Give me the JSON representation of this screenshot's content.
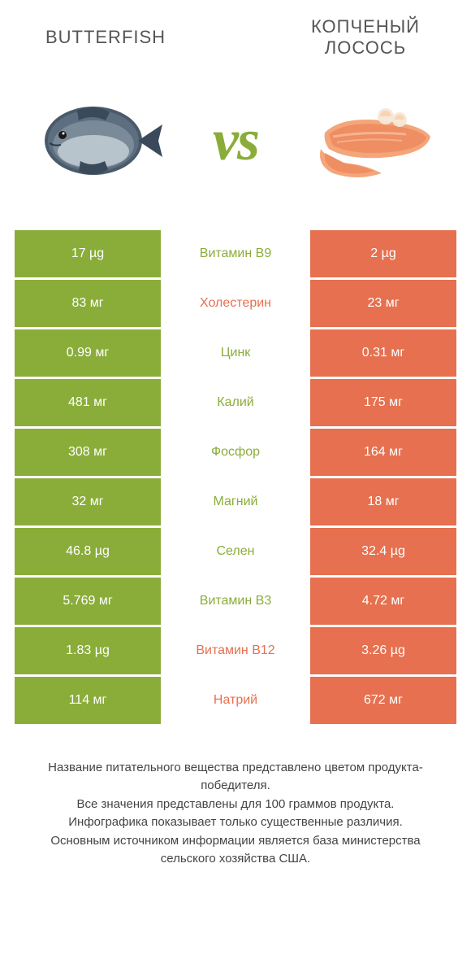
{
  "colors": {
    "green": "#8aad3a",
    "orange": "#e6704f",
    "vs": "#8aad3a",
    "title": "#555555",
    "footnote": "#444444",
    "bg": "#ffffff"
  },
  "header": {
    "left": "BUTTERFISH",
    "right": "КОПЧЕНЫЙ ЛОСОСЬ",
    "vs": "vs"
  },
  "rows": [
    {
      "label": "Витамин B9",
      "left": "17 µg",
      "right": "2 µg",
      "winner": "left"
    },
    {
      "label": "Холестерин",
      "left": "83 мг",
      "right": "23 мг",
      "winner": "right"
    },
    {
      "label": "Цинк",
      "left": "0.99 мг",
      "right": "0.31 мг",
      "winner": "left"
    },
    {
      "label": "Калий",
      "left": "481 мг",
      "right": "175 мг",
      "winner": "left"
    },
    {
      "label": "Фосфор",
      "left": "308 мг",
      "right": "164 мг",
      "winner": "left"
    },
    {
      "label": "Магний",
      "left": "32 мг",
      "right": "18 мг",
      "winner": "left"
    },
    {
      "label": "Селен",
      "left": "46.8 µg",
      "right": "32.4 µg",
      "winner": "left"
    },
    {
      "label": "Витамин B3",
      "left": "5.769 мг",
      "right": "4.72 мг",
      "winner": "left"
    },
    {
      "label": "Витамин B12",
      "left": "1.83 µg",
      "right": "3.26 µg",
      "winner": "right"
    },
    {
      "label": "Натрий",
      "left": "114 мг",
      "right": "672 мг",
      "winner": "right"
    }
  ],
  "footnotes": [
    "Название питательного вещества представлено цветом продукта-победителя.",
    "Все значения представлены для 100 граммов продукта.",
    "Инфографика показывает только существенные различия.",
    "Основным источником информации является база министерства сельского хозяйства США."
  ]
}
